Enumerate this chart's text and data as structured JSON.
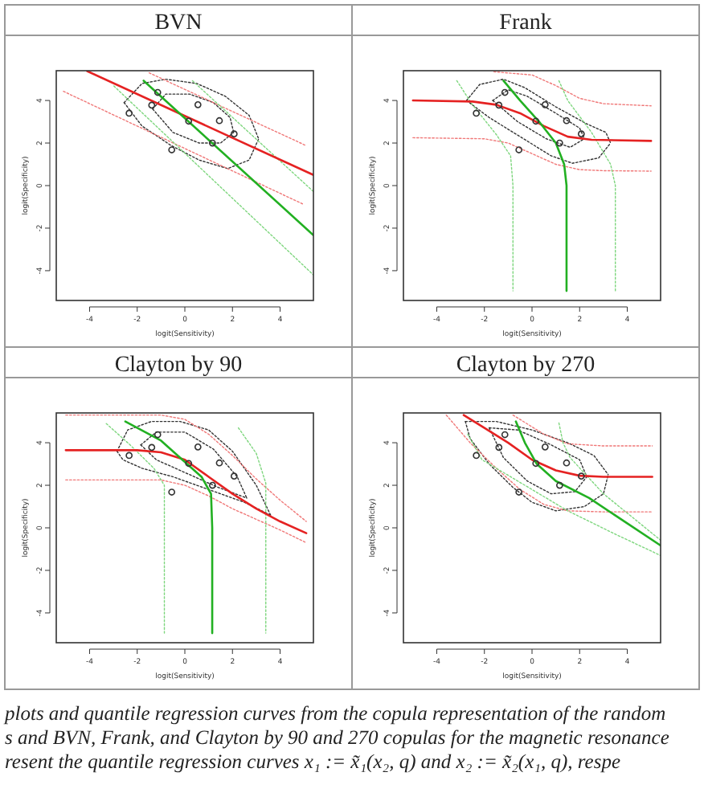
{
  "chart_data": [
    {
      "type": "line",
      "title": "BVN",
      "xlabel": "logit(Sensitivity)",
      "ylabel": "logit(Specificity)",
      "xlim": [
        -5.4,
        5.4
      ],
      "ylim": [
        -5.4,
        5.4
      ],
      "xticks": [
        -4,
        -2,
        0,
        2,
        4
      ],
      "yticks": [
        -4,
        -2,
        0,
        2,
        4
      ],
      "series": [
        {
          "color": "#333333",
          "line_style": "dotted",
          "x": [
            -2.55,
            -1.8,
            -0.8,
            0.5,
            1.7,
            2.7,
            3.1
          ],
          "values": [
            3.9,
            4.8,
            5.0,
            4.8,
            4.2,
            3.3,
            2.2
          ]
        },
        {
          "color": "#333333",
          "line_style": "dotted",
          "x": [
            -2.55,
            -1.8,
            -0.6,
            0.6,
            1.8,
            2.7,
            3.1
          ],
          "values": [
            3.9,
            2.8,
            1.9,
            1.2,
            0.8,
            1.2,
            2.2
          ]
        },
        {
          "color": "#333333",
          "line_style": "dotted",
          "x": [
            -1.35,
            -0.8,
            0.2,
            1.2,
            1.9,
            2.05
          ],
          "values": [
            3.6,
            4.3,
            4.3,
            3.9,
            3.2,
            2.5
          ]
        },
        {
          "color": "#333333",
          "line_style": "dotted",
          "x": [
            -1.35,
            -0.5,
            0.6,
            1.5,
            2.05
          ],
          "values": [
            3.6,
            2.5,
            2.0,
            2.0,
            2.5
          ]
        },
        {
          "color": "#f07878",
          "line_style": "dotted",
          "x": [
            -5.1,
            4.98
          ],
          "values": [
            4.43,
            -0.88
          ]
        },
        {
          "color": "#f07878",
          "line_style": "dotted",
          "x": [
            -1.5,
            5.09
          ],
          "values": [
            5.3,
            1.88
          ]
        },
        {
          "color": "#7ed67e",
          "line_style": "dotted",
          "x": [
            -2.98,
            5.4
          ],
          "values": [
            4.68,
            -4.2
          ]
        },
        {
          "color": "#7ed67e",
          "line_style": "dotted",
          "x": [
            0.32,
            5.4
          ],
          "values": [
            4.93,
            -0.28
          ]
        },
        {
          "color": "#e52222",
          "line_style": "solid",
          "x": [
            -4.1,
            5.4
          ],
          "values": [
            5.38,
            0.5
          ]
        },
        {
          "color": "#22b022",
          "line_style": "solid",
          "x": [
            -1.73,
            5.4
          ],
          "values": [
            4.93,
            -2.33
          ]
        },
        {
          "type": "scatter",
          "marker": "circle",
          "color": "#333333",
          "x": [
            -2.34,
            -1.39,
            -1.14,
            -0.55,
            0.16,
            0.55,
            1.16,
            2.07,
            1.45
          ],
          "values": [
            3.4,
            3.78,
            4.38,
            1.68,
            3.03,
            3.8,
            2.0,
            2.43,
            3.05
          ]
        }
      ]
    },
    {
      "type": "line",
      "title": "Frank",
      "xlabel": "logit(Sensitivity)",
      "ylabel": "logit(Specificity)",
      "xlim": [
        -5.4,
        5.4
      ],
      "ylim": [
        -5.4,
        5.4
      ],
      "xticks": [
        -4,
        -2,
        0,
        2,
        4
      ],
      "yticks": [
        -4,
        -2,
        0,
        2,
        4
      ],
      "series": [
        {
          "color": "#333333",
          "line_style": "dotted",
          "x": [
            -2.75,
            -2.2,
            -1.2,
            -0.3,
            1.0,
            2.3,
            3.1,
            3.3
          ],
          "values": [
            4.0,
            4.75,
            5.0,
            4.6,
            3.7,
            2.9,
            2.5,
            2.0
          ]
        },
        {
          "color": "#333333",
          "line_style": "dotted",
          "x": [
            -2.75,
            -1.8,
            -0.5,
            0.8,
            1.7,
            2.8,
            3.3
          ],
          "values": [
            4.0,
            3.2,
            2.3,
            1.4,
            1.05,
            1.3,
            2.0
          ]
        },
        {
          "color": "#333333",
          "line_style": "dotted",
          "x": [
            -1.65,
            -1.0,
            -0.2,
            1.0,
            2.0,
            2.2
          ],
          "values": [
            4.0,
            4.5,
            4.2,
            3.4,
            2.7,
            2.2
          ]
        },
        {
          "color": "#333333",
          "line_style": "dotted",
          "x": [
            -1.65,
            -0.6,
            0.6,
            1.6,
            2.2
          ],
          "values": [
            4.0,
            3.0,
            2.2,
            1.8,
            2.2
          ]
        },
        {
          "color": "#f07878",
          "line_style": "dotted",
          "x": [
            -1.6,
            0,
            1,
            2,
            3,
            5
          ],
          "values": [
            5.35,
            5.2,
            4.7,
            4.1,
            3.85,
            3.75
          ]
        },
        {
          "color": "#f07878",
          "line_style": "dotted",
          "x": [
            -5,
            -2,
            -1,
            0,
            1,
            2,
            3,
            5
          ],
          "values": [
            2.25,
            2.2,
            2.0,
            1.5,
            1.0,
            0.75,
            0.7,
            0.68
          ]
        },
        {
          "color": "#7ed67e",
          "line_style": "dotted",
          "x": [
            -3.16,
            -2.5,
            -1.5,
            -0.9,
            -0.8,
            -0.8
          ],
          "values": [
            4.93,
            3.8,
            2.4,
            1.4,
            0,
            -4.95
          ]
        },
        {
          "color": "#7ed67e",
          "line_style": "dotted",
          "x": [
            1.13,
            1.5,
            2.5,
            3.3,
            3.5,
            3.5
          ],
          "values": [
            4.93,
            4.0,
            2.5,
            1.0,
            0,
            -4.95
          ]
        },
        {
          "color": "#e52222",
          "line_style": "solid",
          "x": [
            -5,
            -2.5,
            -1.5,
            -0.5,
            0.5,
            1.5,
            2.5,
            5
          ],
          "values": [
            4.0,
            3.95,
            3.8,
            3.4,
            2.8,
            2.3,
            2.15,
            2.1
          ]
        },
        {
          "color": "#22b022",
          "line_style": "solid",
          "x": [
            -1.2,
            -0.5,
            0.3,
            1.0,
            1.35,
            1.45,
            1.45
          ],
          "values": [
            4.93,
            4.0,
            3.0,
            2.0,
            1.0,
            0,
            -4.95
          ]
        },
        {
          "type": "scatter",
          "marker": "circle",
          "color": "#333333",
          "x": [
            -2.34,
            -1.39,
            -1.14,
            -0.55,
            0.16,
            0.55,
            1.16,
            2.07,
            1.45
          ],
          "values": [
            3.4,
            3.78,
            4.38,
            1.68,
            3.03,
            3.8,
            2.0,
            2.43,
            3.05
          ]
        }
      ]
    },
    {
      "type": "line",
      "title": "Clayton by 90",
      "xlabel": "logit(Sensitivity)",
      "ylabel": "logit(Specificity)",
      "xlim": [
        -5.4,
        5.4
      ],
      "ylim": [
        -5.4,
        5.4
      ],
      "xticks": [
        -4,
        -2,
        0,
        2,
        4
      ],
      "yticks": [
        -4,
        -2,
        0,
        2,
        4
      ],
      "series": [
        {
          "color": "#333333",
          "line_style": "dotted",
          "x": [
            -2.85,
            -2.4,
            -1.4,
            -0.2,
            1.0,
            2.0,
            3.0,
            3.6
          ],
          "values": [
            3.6,
            4.6,
            5.0,
            5.0,
            4.6,
            3.6,
            2.0,
            0.6
          ]
        },
        {
          "color": "#333333",
          "line_style": "dotted",
          "x": [
            -2.85,
            -2.6,
            -1.8,
            -0.5,
            1.0,
            2.5,
            3.6
          ],
          "values": [
            3.6,
            3.2,
            2.8,
            2.4,
            1.8,
            1.2,
            0.6
          ]
        },
        {
          "color": "#333333",
          "line_style": "dotted",
          "x": [
            -1.85,
            -1.2,
            0,
            1.2,
            2.2,
            2.6
          ],
          "values": [
            3.9,
            4.5,
            4.5,
            3.7,
            2.4,
            1.4
          ]
        },
        {
          "color": "#333333",
          "line_style": "dotted",
          "x": [
            -1.85,
            -1.2,
            0,
            1.4,
            2.6
          ],
          "values": [
            3.9,
            3.2,
            2.6,
            1.9,
            1.4
          ]
        },
        {
          "color": "#f07878",
          "line_style": "dotted",
          "x": [
            -5,
            -1,
            0,
            1,
            2,
            3,
            4,
            5.1
          ],
          "values": [
            5.3,
            5.3,
            5.1,
            4.4,
            3.4,
            2.3,
            1.3,
            0.3
          ]
        },
        {
          "color": "#f07878",
          "line_style": "dotted",
          "x": [
            -5,
            -1,
            0,
            1,
            2,
            3,
            4,
            5.1
          ],
          "values": [
            2.25,
            2.25,
            2.0,
            1.5,
            0.9,
            0.4,
            -0.1,
            -0.7
          ]
        },
        {
          "color": "#7ed67e",
          "line_style": "dotted",
          "x": [
            -3.3,
            -2.3,
            -1.3,
            -0.86,
            -0.86
          ],
          "values": [
            4.9,
            3.9,
            2.8,
            2.0,
            -4.95
          ]
        },
        {
          "color": "#7ed67e",
          "line_style": "dotted",
          "x": [
            2.25,
            3.0,
            3.4,
            3.4
          ],
          "values": [
            4.7,
            3.5,
            2.1,
            -4.95
          ]
        },
        {
          "color": "#e52222",
          "line_style": "solid",
          "x": [
            -5,
            -2,
            -1,
            0,
            1,
            2,
            3,
            4,
            5.1
          ],
          "values": [
            3.65,
            3.65,
            3.55,
            3.2,
            2.4,
            1.6,
            0.9,
            0.3,
            -0.25
          ]
        },
        {
          "color": "#22b022",
          "line_style": "solid",
          "x": [
            -2.5,
            -1,
            0,
            0.7,
            1.1,
            1.15,
            1.15
          ],
          "values": [
            5.0,
            4.1,
            3.1,
            2.4,
            1.6,
            0,
            -4.95
          ]
        },
        {
          "type": "scatter",
          "marker": "circle",
          "color": "#333333",
          "x": [
            -2.34,
            -1.39,
            -1.14,
            -0.55,
            0.16,
            0.55,
            1.16,
            2.07,
            1.45
          ],
          "values": [
            3.4,
            3.78,
            4.38,
            1.68,
            3.03,
            3.8,
            2.0,
            2.43,
            3.05
          ]
        }
      ]
    },
    {
      "type": "line",
      "title": "Clayton by 270",
      "xlabel": "logit(Sensitivity)",
      "ylabel": "logit(Specificity)",
      "xlim": [
        -5.4,
        5.4
      ],
      "ylim": [
        -5.4,
        5.4
      ],
      "xticks": [
        -4,
        -2,
        0,
        2,
        4
      ],
      "yticks": [
        -4,
        -2,
        0,
        2,
        4
      ],
      "annotations": [
        "plots and quantile regression curves from the copula representation of the random",
        "s and BVN, Frank, and Clayton by 90 and 270 copulas for the magnetic resonance",
        "resent the quantile regression curves x₁ := x̃₁(x₂, q) and x₂ := x̃₂(x₁, q), respe"
      ],
      "series": [
        {
          "color": "#333333",
          "line_style": "dotted",
          "x": [
            -2.8,
            -1.5,
            0,
            1.5,
            2.6,
            3.2
          ],
          "values": [
            5.0,
            5.0,
            4.6,
            4.0,
            3.4,
            2.5
          ]
        },
        {
          "color": "#333333",
          "line_style": "dotted",
          "x": [
            -2.8,
            -2.6,
            -1.8,
            -0.8,
            0,
            1.0,
            2.2,
            3.0,
            3.2
          ],
          "values": [
            5.0,
            4.2,
            3.0,
            1.9,
            1.2,
            0.8,
            1.0,
            1.6,
            2.5
          ]
        },
        {
          "color": "#333333",
          "line_style": "dotted",
          "x": [
            -1.8,
            -0.6,
            0.8,
            2.0,
            2.3
          ],
          "values": [
            4.7,
            4.6,
            3.9,
            3.2,
            2.4
          ]
        },
        {
          "color": "#333333",
          "line_style": "dotted",
          "x": [
            -1.8,
            -1.2,
            -0.2,
            0.8,
            1.8,
            2.3
          ],
          "values": [
            4.7,
            3.3,
            2.2,
            1.6,
            1.7,
            2.4
          ]
        },
        {
          "color": "#f07878",
          "line_style": "dotted",
          "x": [
            -0.8,
            0.5,
            1.5,
            3,
            5.05
          ],
          "values": [
            5.3,
            4.4,
            3.95,
            3.85,
            3.85
          ]
        },
        {
          "color": "#f07878",
          "line_style": "dotted",
          "x": [
            -3.6,
            -2.6,
            -1.5,
            -0.5,
            0.5,
            1.5,
            3,
            5.05
          ],
          "values": [
            5.3,
            4.0,
            2.8,
            1.8,
            1.1,
            0.8,
            0.75,
            0.75
          ]
        },
        {
          "color": "#7ed67e",
          "line_style": "dotted",
          "x": [
            -2.7,
            -2.1,
            -0.6,
            1.5,
            3.5,
            5.4
          ],
          "values": [
            4.4,
            3.2,
            2.2,
            0.8,
            -0.3,
            -1.3
          ]
        },
        {
          "color": "#7ed67e",
          "line_style": "dotted",
          "x": [
            1.13,
            1.3,
            1.6,
            3.0,
            5.4
          ],
          "values": [
            4.93,
            4.0,
            3.3,
            1.6,
            -0.58
          ]
        },
        {
          "color": "#e52222",
          "line_style": "solid",
          "x": [
            -2.87,
            -2,
            -1,
            0,
            1,
            2,
            3,
            5.05
          ],
          "values": [
            5.3,
            4.7,
            4.0,
            3.2,
            2.7,
            2.45,
            2.4,
            2.4
          ]
        },
        {
          "color": "#22b022",
          "line_style": "solid",
          "x": [
            -0.68,
            -0.3,
            0.2,
            1.0,
            2.4,
            5.4
          ],
          "values": [
            5.0,
            4.0,
            3.0,
            2.2,
            1.4,
            -0.83
          ]
        },
        {
          "type": "scatter",
          "marker": "circle",
          "color": "#333333",
          "x": [
            -2.34,
            -1.39,
            -1.14,
            -0.55,
            0.16,
            0.55,
            1.16,
            2.07,
            1.45
          ],
          "values": [
            3.4,
            3.78,
            4.38,
            1.68,
            3.03,
            3.8,
            2.0,
            2.43,
            3.05
          ]
        }
      ]
    }
  ]
}
